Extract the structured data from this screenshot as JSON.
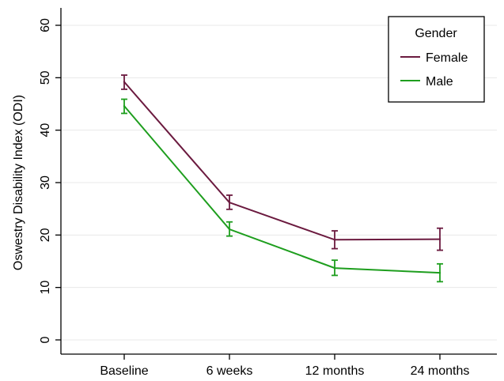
{
  "chart_data": {
    "type": "line",
    "categories": [
      "Baseline",
      "6 weeks",
      "12 months",
      "24 months"
    ],
    "ylabel": "Oswestry Disability Index (ODI)",
    "xlabel": "",
    "ylim": [
      0,
      60
    ],
    "yticks": [
      0,
      10,
      20,
      30,
      40,
      50,
      60
    ],
    "grid": "horizontal",
    "legend": {
      "title": "Gender",
      "placement": "top-right"
    },
    "series": [
      {
        "name": "Female",
        "color": "#6b1a3f",
        "values": [
          49.2,
          26.2,
          19.1,
          19.2
        ],
        "lower": [
          47.8,
          24.9,
          17.4,
          17.1
        ],
        "upper": [
          50.5,
          27.6,
          20.8,
          21.3
        ]
      },
      {
        "name": "Male",
        "color": "#1e9e1e",
        "values": [
          44.6,
          21.1,
          13.7,
          12.8
        ],
        "lower": [
          43.2,
          19.8,
          12.3,
          11.1
        ],
        "upper": [
          45.9,
          22.5,
          15.2,
          14.5
        ]
      }
    ]
  }
}
